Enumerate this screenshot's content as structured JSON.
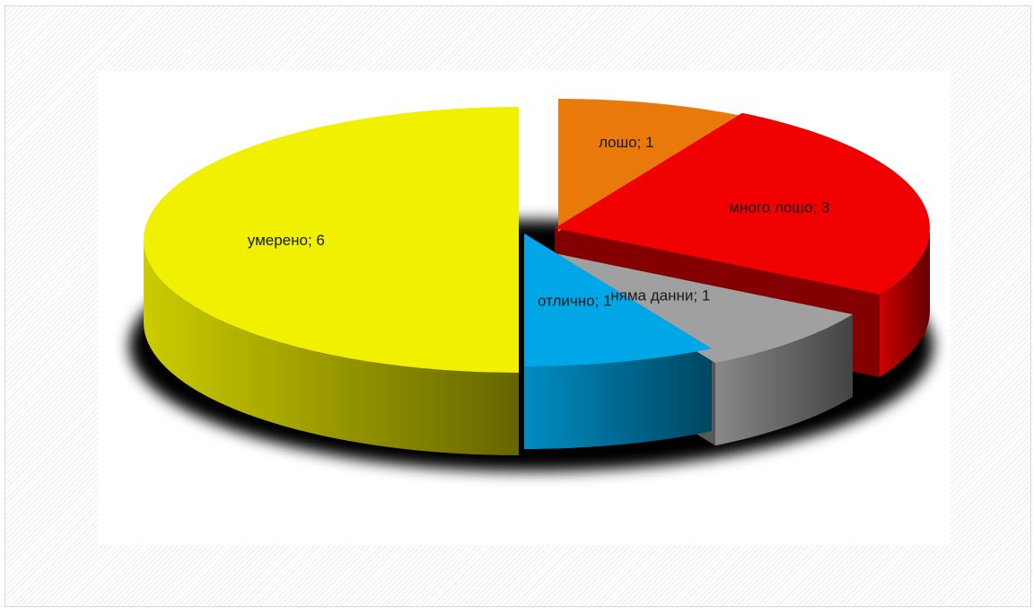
{
  "chart_data": {
    "type": "pie",
    "style": "3d-exploded",
    "title": "",
    "legend": "none",
    "slices": [
      {
        "category": "умерено",
        "value": 6,
        "label": "умерено; 6",
        "color": "#f0f000"
      },
      {
        "category": "лошо",
        "value": 1,
        "label": "лошо; 1",
        "color": "#e8790a"
      },
      {
        "category": "много лошо",
        "value": 3,
        "label": "много лошо; 3",
        "color": "#f00000"
      },
      {
        "category": "няма данни",
        "value": 1,
        "label": "няма данни; 1",
        "color": "#a0a0a0"
      },
      {
        "category": "отлично",
        "value": 1,
        "label": "отлично; 1",
        "color": "#00a6e6"
      }
    ]
  }
}
